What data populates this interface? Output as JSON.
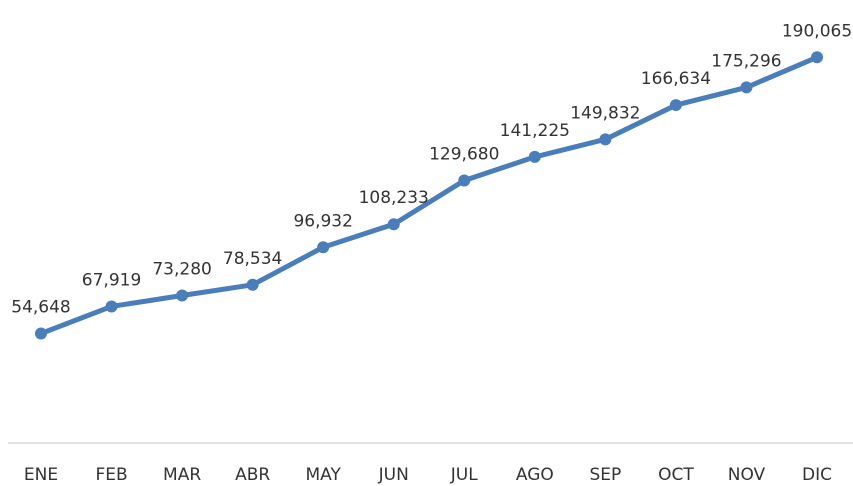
{
  "chart_data": {
    "type": "line",
    "categories": [
      "ENE",
      "FEB",
      "MAR",
      "ABR",
      "MAY",
      "JUN",
      "JUL",
      "AGO",
      "SEP",
      "OCT",
      "NOV",
      "DIC"
    ],
    "values": [
      54648,
      67919,
      73280,
      78534,
      96932,
      108233,
      129680,
      141225,
      149832,
      166634,
      175296,
      190065
    ],
    "value_labels": [
      "54,648",
      "67,919",
      "73,280",
      "78,534",
      "96,932",
      "108,233",
      "129,680",
      "141,225",
      "149,832",
      "166,634",
      "175,296",
      "190,065"
    ],
    "color": "#4a7ebb",
    "ylim": [
      0,
      200000
    ]
  }
}
